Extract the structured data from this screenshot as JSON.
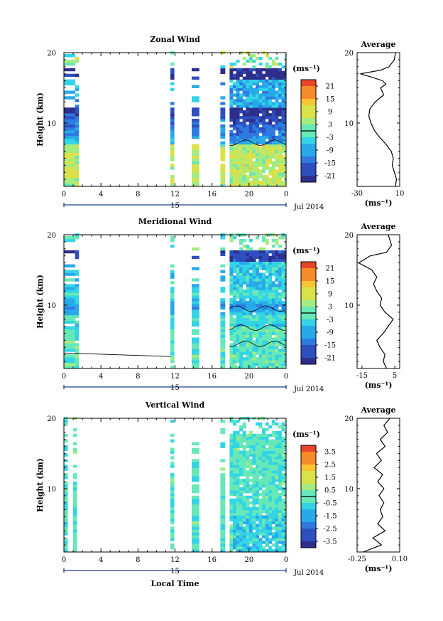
{
  "chart_data": [
    {
      "type": "heatmap",
      "title": "Zonal Wind",
      "ylabel": "Height (km)",
      "ylim": [
        1,
        20
      ],
      "xlim": [
        0,
        24
      ],
      "x_ticks": [
        "0",
        "4",
        "8",
        "12",
        "16",
        "20",
        "0"
      ],
      "y_ticks": [
        "10",
        "20"
      ],
      "date_label": "15",
      "month_label": "Jul 2014",
      "unit": "(ms⁻¹)",
      "colorbar_ticks": [
        "21",
        "15",
        "9",
        "3",
        "-3",
        "-9",
        "-15",
        "-21"
      ],
      "colorbar_range": [
        -24,
        24
      ],
      "data_columns": [
        [
          0,
          1.2
        ],
        [
          1.2,
          1.6
        ],
        [
          11.5,
          11.9
        ],
        [
          13.8,
          14.6
        ],
        [
          16.9,
          17.4
        ],
        [
          17.9,
          24
        ]
      ],
      "average": {
        "title": "Average",
        "xlabel": "(ms⁻¹)",
        "x_ticks": [
          "-30",
          "10"
        ],
        "xlim": [
          -30,
          10
        ],
        "y_ticks": [
          "10",
          "20"
        ],
        "ylim": [
          1,
          20
        ],
        "profile": [
          [
            6,
            1
          ],
          [
            7,
            2
          ],
          [
            5,
            3
          ],
          [
            3,
            4
          ],
          [
            4,
            5
          ],
          [
            2,
            6
          ],
          [
            -3,
            7
          ],
          [
            -9,
            8
          ],
          [
            -14,
            9
          ],
          [
            -17,
            10
          ],
          [
            -19,
            11
          ],
          [
            -18,
            12
          ],
          [
            -13,
            13
          ],
          [
            -5,
            14
          ],
          [
            -8,
            15
          ],
          [
            -3,
            15.5
          ],
          [
            -6,
            16
          ],
          [
            -16,
            16.5
          ],
          [
            -27,
            17
          ],
          [
            -8,
            17.5
          ],
          [
            0,
            18
          ],
          [
            5,
            19
          ],
          [
            6,
            20
          ]
        ]
      }
    },
    {
      "type": "heatmap",
      "title": "Meridional Wind",
      "ylabel": "Height (km)",
      "ylim": [
        1,
        20
      ],
      "xlim": [
        0,
        24
      ],
      "x_ticks": [
        "0",
        "4",
        "8",
        "12",
        "16",
        "20",
        "0"
      ],
      "y_ticks": [
        "10",
        "20"
      ],
      "date_label": "15",
      "month_label": "Jul 2014",
      "unit": "(ms⁻¹)",
      "colorbar_ticks": [
        "21",
        "15",
        "9",
        "3",
        "-3",
        "-9",
        "-15",
        "-21"
      ],
      "colorbar_range": [
        -24,
        24
      ],
      "data_columns": [
        [
          0,
          1.2
        ],
        [
          1.2,
          1.6
        ],
        [
          11.5,
          11.9
        ],
        [
          13.8,
          14.6
        ],
        [
          16.9,
          17.4
        ],
        [
          17.9,
          24
        ]
      ],
      "average": {
        "title": "Average",
        "xlabel": "(ms⁻¹)",
        "x_ticks": [
          "-15",
          "5"
        ],
        "xlim": [
          -18,
          8
        ],
        "y_ticks": [
          "10",
          "20"
        ],
        "ylim": [
          1,
          20
        ],
        "profile": [
          [
            0,
            1
          ],
          [
            -2,
            2
          ],
          [
            -1,
            3
          ],
          [
            -4,
            4
          ],
          [
            -6,
            5
          ],
          [
            -2,
            6
          ],
          [
            1,
            7
          ],
          [
            4,
            8
          ],
          [
            -1,
            9
          ],
          [
            -4,
            10
          ],
          [
            -3,
            11
          ],
          [
            -6,
            12
          ],
          [
            -8,
            13
          ],
          [
            -6,
            14
          ],
          [
            -9,
            15
          ],
          [
            -17,
            16
          ],
          [
            -10,
            17
          ],
          [
            0,
            17.5
          ],
          [
            3,
            18.5
          ],
          [
            1,
            20
          ]
        ]
      }
    },
    {
      "type": "heatmap",
      "title": "Vertical Wind",
      "ylabel": "Height (km)",
      "xlabel": "Local Time",
      "ylim": [
        1,
        20
      ],
      "xlim": [
        0,
        24
      ],
      "x_ticks": [
        "0",
        "4",
        "8",
        "12",
        "16",
        "20",
        "0"
      ],
      "y_ticks": [
        "10",
        "20"
      ],
      "date_label": "15",
      "month_label": "Jul 2014",
      "unit": "(ms⁻¹)",
      "colorbar_ticks": [
        "3.5",
        "2.5",
        "1.5",
        "0.5",
        "-0.5",
        "-1.5",
        "-2.5",
        "-3.5"
      ],
      "colorbar_range": [
        -4,
        4
      ],
      "data_columns": [
        [
          0,
          0.4
        ],
        [
          1.0,
          1.4
        ],
        [
          11.5,
          11.9
        ],
        [
          13.8,
          14.6
        ],
        [
          16.9,
          17.4
        ],
        [
          17.9,
          24
        ]
      ],
      "average": {
        "title": "Average",
        "xlabel": "(ms⁻¹)",
        "x_ticks": [
          "-0.25",
          "0.10"
        ],
        "xlim": [
          -0.25,
          0.1
        ],
        "y_ticks": [
          "10",
          "20"
        ],
        "ylim": [
          1,
          20
        ],
        "profile": [
          [
            -0.2,
            1
          ],
          [
            -0.05,
            2
          ],
          [
            -0.12,
            3
          ],
          [
            -0.02,
            4
          ],
          [
            -0.08,
            5
          ],
          [
            -0.04,
            6
          ],
          [
            -0.06,
            7
          ],
          [
            -0.03,
            8
          ],
          [
            -0.07,
            9
          ],
          [
            -0.03,
            10
          ],
          [
            -0.08,
            11
          ],
          [
            -0.04,
            12
          ],
          [
            -0.11,
            13
          ],
          [
            -0.05,
            14
          ],
          [
            -0.09,
            15
          ],
          [
            -0.02,
            16
          ],
          [
            -0.06,
            17
          ],
          [
            0.0,
            18
          ],
          [
            -0.03,
            19
          ],
          [
            0.02,
            20
          ]
        ]
      }
    }
  ]
}
